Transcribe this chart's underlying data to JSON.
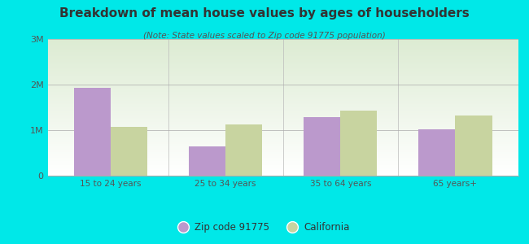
{
  "title": "Breakdown of mean house values by ages of householders",
  "subtitle": "(Note: State values scaled to Zip code 91775 population)",
  "categories": [
    "15 to 24 years",
    "25 to 34 years",
    "35 to 64 years",
    "65 years+"
  ],
  "zip_values": [
    1920000,
    650000,
    1280000,
    1010000
  ],
  "ca_values": [
    1080000,
    1130000,
    1420000,
    1320000
  ],
  "zip_color": "#bb99cc",
  "ca_color": "#c8d4a0",
  "background_outer": "#00e8e8",
  "ylim": [
    0,
    3000000
  ],
  "yticks": [
    0,
    1000000,
    2000000,
    3000000
  ],
  "ytick_labels": [
    "0",
    "1M",
    "2M",
    "3M"
  ],
  "legend_zip_label": "Zip code 91775",
  "legend_ca_label": "California",
  "bar_width": 0.32
}
